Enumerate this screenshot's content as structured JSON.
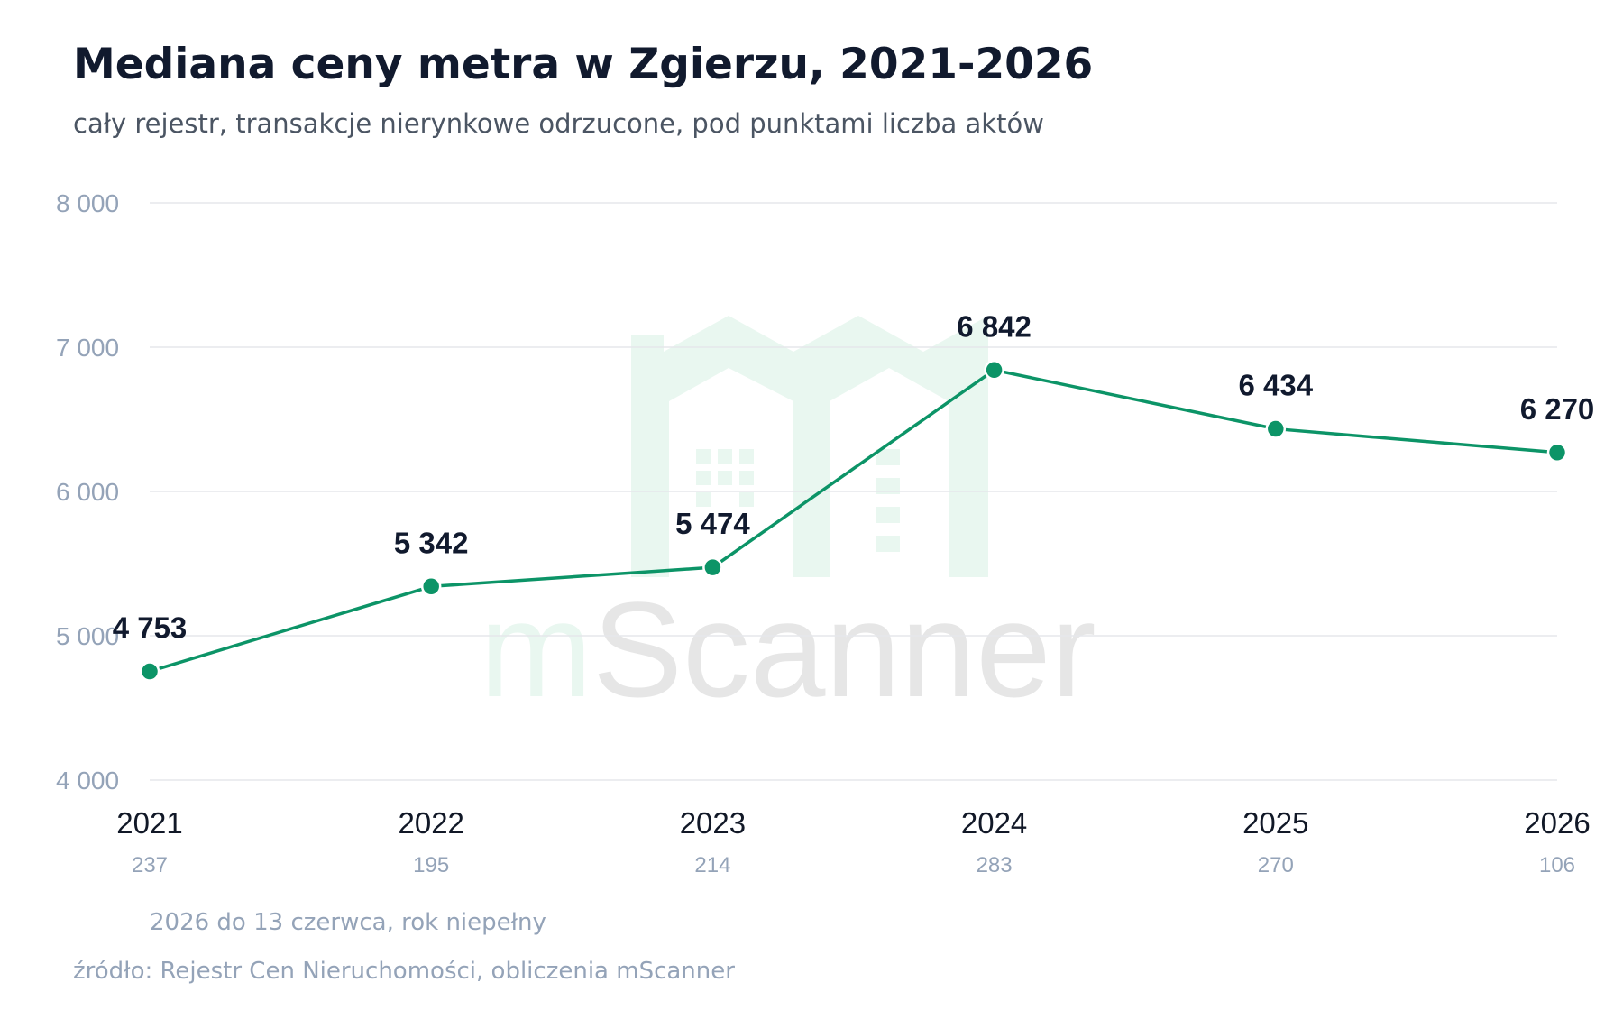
{
  "title": "Mediana ceny metra w Zgierzu, 2021-2026",
  "subtitle": "cały rejestr, transakcje nierynkowe odrzucone, pod punktami liczba aktów",
  "footnote": "2026 do 13 czerwca, rok niepełny",
  "source": "źródło: Rejestr Cen Nieruchomości, obliczenia mScanner",
  "watermark": {
    "prefix": "m",
    "text": "Scanner",
    "prefix_color": "#e9f7f0",
    "text_color": "#e6e6e6",
    "logo_color": "#e9f7f0"
  },
  "chart_data": {
    "type": "line",
    "categories": [
      "2021",
      "2022",
      "2023",
      "2024",
      "2025",
      "2026"
    ],
    "values": [
      4753,
      5342,
      5474,
      6842,
      6434,
      6270
    ],
    "value_labels": [
      "4 753",
      "5 342",
      "5 474",
      "6 842",
      "6 434",
      "6 270"
    ],
    "counts": [
      "237",
      "195",
      "214",
      "283",
      "270",
      "106"
    ],
    "ylim": [
      4000,
      8000
    ],
    "yticks": [
      4000,
      5000,
      6000,
      7000,
      8000
    ],
    "ytick_labels": [
      "4 000",
      "5 000",
      "6 000",
      "7 000",
      "8 000"
    ],
    "grid": true,
    "line_color": "#0c9467",
    "grid_color": "#e5e7eb",
    "tick_color": "#94a3b8"
  }
}
